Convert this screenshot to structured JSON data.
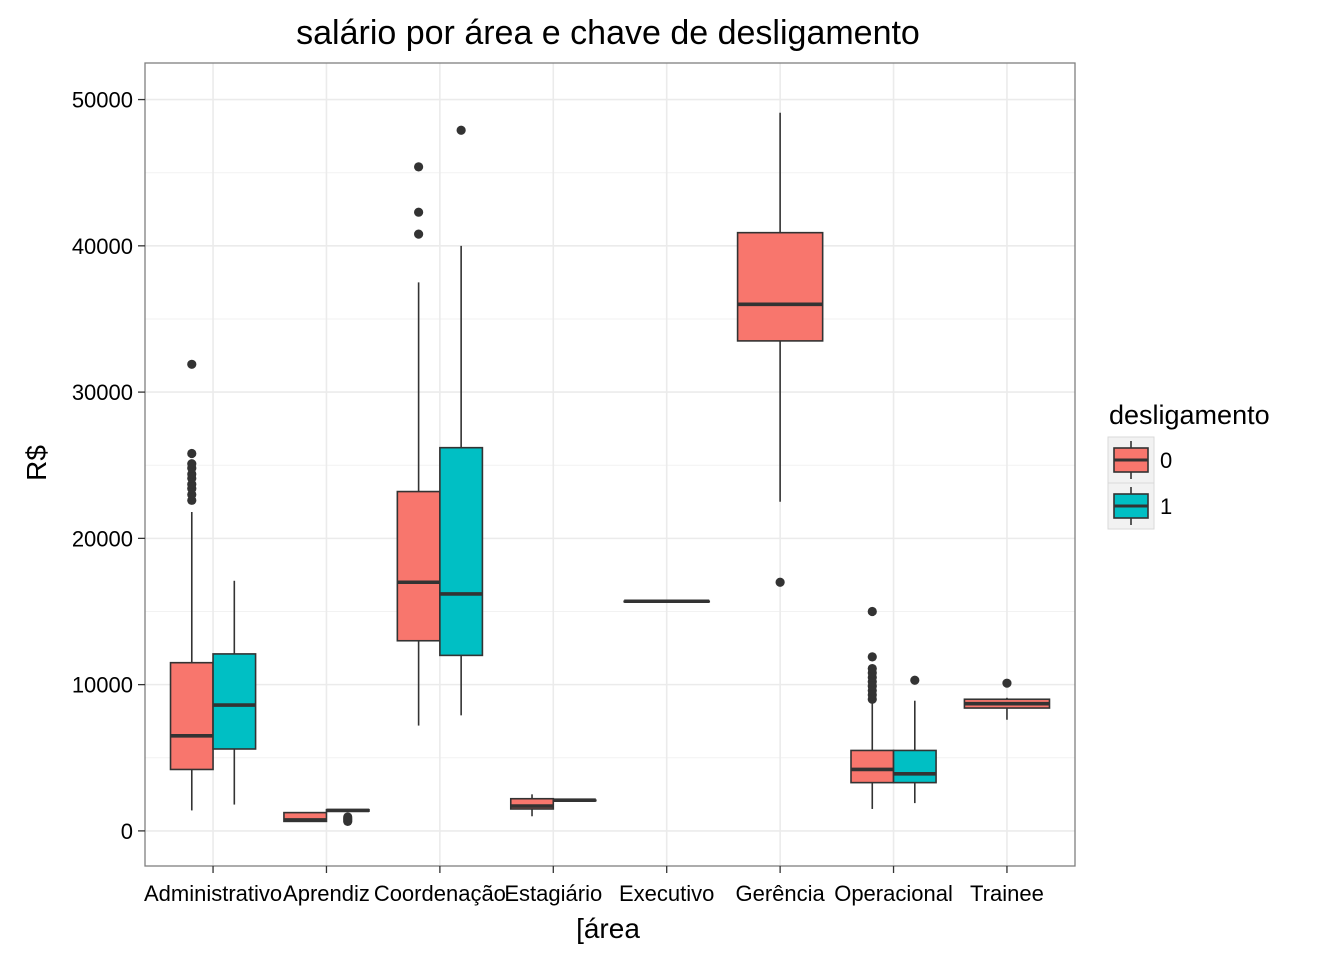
{
  "chart_data": {
    "type": "boxplot",
    "title": "salário por área e chave de desligamento",
    "xlabel": "[área",
    "ylabel": "R$",
    "ylim": [
      -2400,
      52500
    ],
    "yticks": [
      0,
      10000,
      20000,
      30000,
      40000,
      50000
    ],
    "grid": true,
    "legend": {
      "title": "desligamento",
      "placement": "right",
      "entries": [
        {
          "label": "0",
          "color": "#F8766D"
        },
        {
          "label": "1",
          "color": "#00BFC4"
        }
      ]
    },
    "categories": [
      "Administrativo",
      "Aprendiz",
      "Coordenação",
      "Estagiário",
      "Executivo",
      "Gerência",
      "Operacional",
      "Trainee"
    ],
    "boxes": [
      {
        "category": "Administrativo",
        "group": "0",
        "min": 1400,
        "q1": 4200,
        "median": 6500,
        "q3": 11500,
        "max": 21800,
        "outliers": [
          22600,
          23000,
          23400,
          23700,
          24100,
          24400,
          24800,
          25100,
          25800,
          31900
        ]
      },
      {
        "category": "Administrativo",
        "group": "1",
        "min": 1800,
        "q1": 5600,
        "median": 8600,
        "q3": 12100,
        "max": 17100,
        "outliers": []
      },
      {
        "category": "Aprendiz",
        "group": "0",
        "min": 650,
        "q1": 650,
        "median": 750,
        "q3": 1250,
        "max": 1250,
        "outliers": []
      },
      {
        "category": "Aprendiz",
        "group": "1",
        "min": 1300,
        "q1": 1350,
        "median": 1400,
        "q3": 1450,
        "max": 1500,
        "outliers": [
          650,
          750,
          850,
          950
        ]
      },
      {
        "category": "Coordenação",
        "group": "0",
        "min": 7200,
        "q1": 13000,
        "median": 17000,
        "q3": 23200,
        "max": 37500,
        "outliers": [
          40800,
          42300,
          45400
        ]
      },
      {
        "category": "Coordenação",
        "group": "1",
        "min": 7900,
        "q1": 12000,
        "median": 16200,
        "q3": 26200,
        "max": 40000,
        "outliers": [
          47900
        ]
      },
      {
        "category": "Estagiário",
        "group": "0",
        "min": 1000,
        "q1": 1500,
        "median": 1700,
        "q3": 2200,
        "max": 2500,
        "outliers": []
      },
      {
        "category": "Estagiário",
        "group": "1",
        "min": 2100,
        "q1": 2100,
        "median": 2100,
        "q3": 2100,
        "max": 2100,
        "outliers": []
      },
      {
        "category": "Executivo",
        "group": "0",
        "min": 15700,
        "q1": 15700,
        "median": 15700,
        "q3": 15700,
        "max": 15700,
        "outliers": [],
        "full_width": true
      },
      {
        "category": "Gerência",
        "group": "0",
        "min": 22500,
        "q1": 33500,
        "median": 36000,
        "q3": 40900,
        "max": 49100,
        "outliers": [
          17000
        ],
        "full_width": true
      },
      {
        "category": "Operacional",
        "group": "0",
        "min": 1500,
        "q1": 3300,
        "median": 4200,
        "q3": 5500,
        "max": 8800,
        "outliers": [
          9000,
          9300,
          9600,
          9900,
          10200,
          10500,
          10800,
          11100,
          11900,
          15000
        ]
      },
      {
        "category": "Operacional",
        "group": "1",
        "min": 1900,
        "q1": 3300,
        "median": 3900,
        "q3": 5500,
        "max": 8900,
        "outliers": [
          10300
        ]
      },
      {
        "category": "Trainee",
        "group": "0",
        "min": 7600,
        "q1": 8400,
        "median": 8700,
        "q3": 9000,
        "max": 9100,
        "outliers": [
          10100
        ],
        "full_width": true
      }
    ]
  }
}
